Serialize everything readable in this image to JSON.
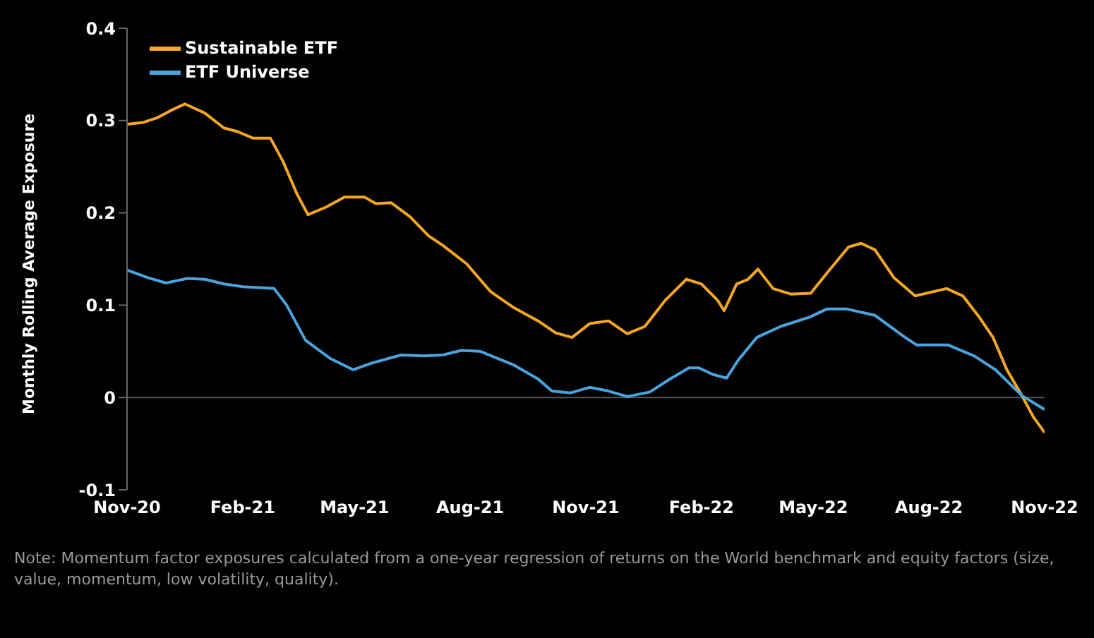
{
  "chart_data": {
    "type": "line",
    "ylabel": "Monthly Rolling Average Exposure",
    "ylim": [
      -0.1,
      0.4
    ],
    "yticks": [
      -0.1,
      0,
      0.1,
      0.2,
      0.3,
      0.4
    ],
    "xlim": [
      "2020-11",
      "2022-11"
    ],
    "xticks": [
      {
        "value": "2020-11",
        "label": "Nov-20"
      },
      {
        "value": "2021-02",
        "label": "Feb-21"
      },
      {
        "value": "2021-05",
        "label": "May-21"
      },
      {
        "value": "2021-08",
        "label": "Aug-21"
      },
      {
        "value": "2021-11",
        "label": "Nov-21"
      },
      {
        "value": "2022-02",
        "label": "Feb-22"
      },
      {
        "value": "2022-05",
        "label": "May-22"
      },
      {
        "value": "2022-08",
        "label": "Aug-22"
      },
      {
        "value": "2022-11",
        "label": "Nov-22"
      }
    ],
    "grid": false,
    "legend": "top left",
    "marker": "none",
    "line_style": "solid",
    "ref_lines": [
      {
        "axis": "y",
        "value": 0,
        "color": "#555555"
      }
    ],
    "annotations": [
      "Note: Momentum factor exposures calculated from a one-year regression of returns on the World benchmark and equity factors (size, value, momentum, low volatility, quality)."
    ],
    "series": [
      {
        "name": "Sustainable ETF",
        "color": "#f5a623",
        "x": [
          "2020-11-01",
          "2020-11-14",
          "2020-11-25",
          "2020-12-06",
          "2020-12-17",
          "2021-01-02",
          "2021-01-17",
          "2021-01-28",
          "2021-02-09",
          "2021-02-23",
          "2021-03-05",
          "2021-03-16",
          "2021-03-25",
          "2021-04-08",
          "2021-04-23",
          "2021-05-09",
          "2021-05-18",
          "2021-05-30",
          "2021-06-14",
          "2021-06-29",
          "2021-07-10",
          "2021-07-29",
          "2021-08-17",
          "2021-09-05",
          "2021-09-24",
          "2021-10-08",
          "2021-10-21",
          "2021-11-04",
          "2021-11-19",
          "2021-12-04",
          "2021-12-18",
          "2022-01-03",
          "2022-01-20",
          "2022-02-01",
          "2022-02-14",
          "2022-02-19",
          "2022-03-01",
          "2022-03-10",
          "2022-03-18",
          "2022-03-30",
          "2022-04-13",
          "2022-04-29",
          "2022-05-12",
          "2022-05-29",
          "2022-06-08",
          "2022-06-19",
          "2022-07-04",
          "2022-07-21",
          "2022-08-15",
          "2022-08-28",
          "2022-09-10",
          "2022-09-21",
          "2022-10-02",
          "2022-10-14",
          "2022-10-23",
          "2022-11-01"
        ],
        "values": [
          0.296,
          0.298,
          0.303,
          0.311,
          0.318,
          0.308,
          0.292,
          0.288,
          0.281,
          0.281,
          0.256,
          0.221,
          0.198,
          0.206,
          0.217,
          0.217,
          0.21,
          0.211,
          0.196,
          0.175,
          0.165,
          0.145,
          0.115,
          0.097,
          0.083,
          0.07,
          0.065,
          0.08,
          0.083,
          0.069,
          0.077,
          0.105,
          0.128,
          0.123,
          0.105,
          0.094,
          0.123,
          0.128,
          0.139,
          0.118,
          0.112,
          0.113,
          0.135,
          0.163,
          0.167,
          0.16,
          0.13,
          0.11,
          0.118,
          0.11,
          0.087,
          0.065,
          0.03,
          0.002,
          -0.021,
          -0.038
        ]
      },
      {
        "name": "ETF Universe",
        "color": "#4aa3df",
        "x": [
          "2020-11-01",
          "2020-11-17",
          "2020-12-02",
          "2020-12-19",
          "2021-01-02",
          "2021-01-17",
          "2021-02-01",
          "2021-02-26",
          "2021-03-08",
          "2021-03-23",
          "2021-04-12",
          "2021-04-30",
          "2021-05-14",
          "2021-06-07",
          "2021-06-25",
          "2021-07-10",
          "2021-07-25",
          "2021-08-09",
          "2021-09-05",
          "2021-09-24",
          "2021-10-05",
          "2021-10-20",
          "2021-11-04",
          "2021-11-19",
          "2021-12-04",
          "2021-12-22",
          "2022-01-07",
          "2022-01-22",
          "2022-01-30",
          "2022-02-10",
          "2022-02-21",
          "2022-03-02",
          "2022-03-17",
          "2022-04-05",
          "2022-04-28",
          "2022-05-12",
          "2022-05-27",
          "2022-06-19",
          "2022-07-11",
          "2022-07-22",
          "2022-08-16",
          "2022-09-06",
          "2022-09-23",
          "2022-10-14",
          "2022-11-01"
        ],
        "values": [
          0.138,
          0.13,
          0.124,
          0.129,
          0.128,
          0.123,
          0.12,
          0.118,
          0.1,
          0.062,
          0.042,
          0.03,
          0.037,
          0.046,
          0.045,
          0.046,
          0.051,
          0.05,
          0.035,
          0.02,
          0.007,
          0.005,
          0.011,
          0.007,
          0.001,
          0.006,
          0.02,
          0.032,
          0.032,
          0.025,
          0.021,
          0.04,
          0.065,
          0.077,
          0.087,
          0.096,
          0.096,
          0.089,
          0.067,
          0.057,
          0.057,
          0.045,
          0.03,
          0.002,
          -0.013
        ]
      }
    ]
  }
}
